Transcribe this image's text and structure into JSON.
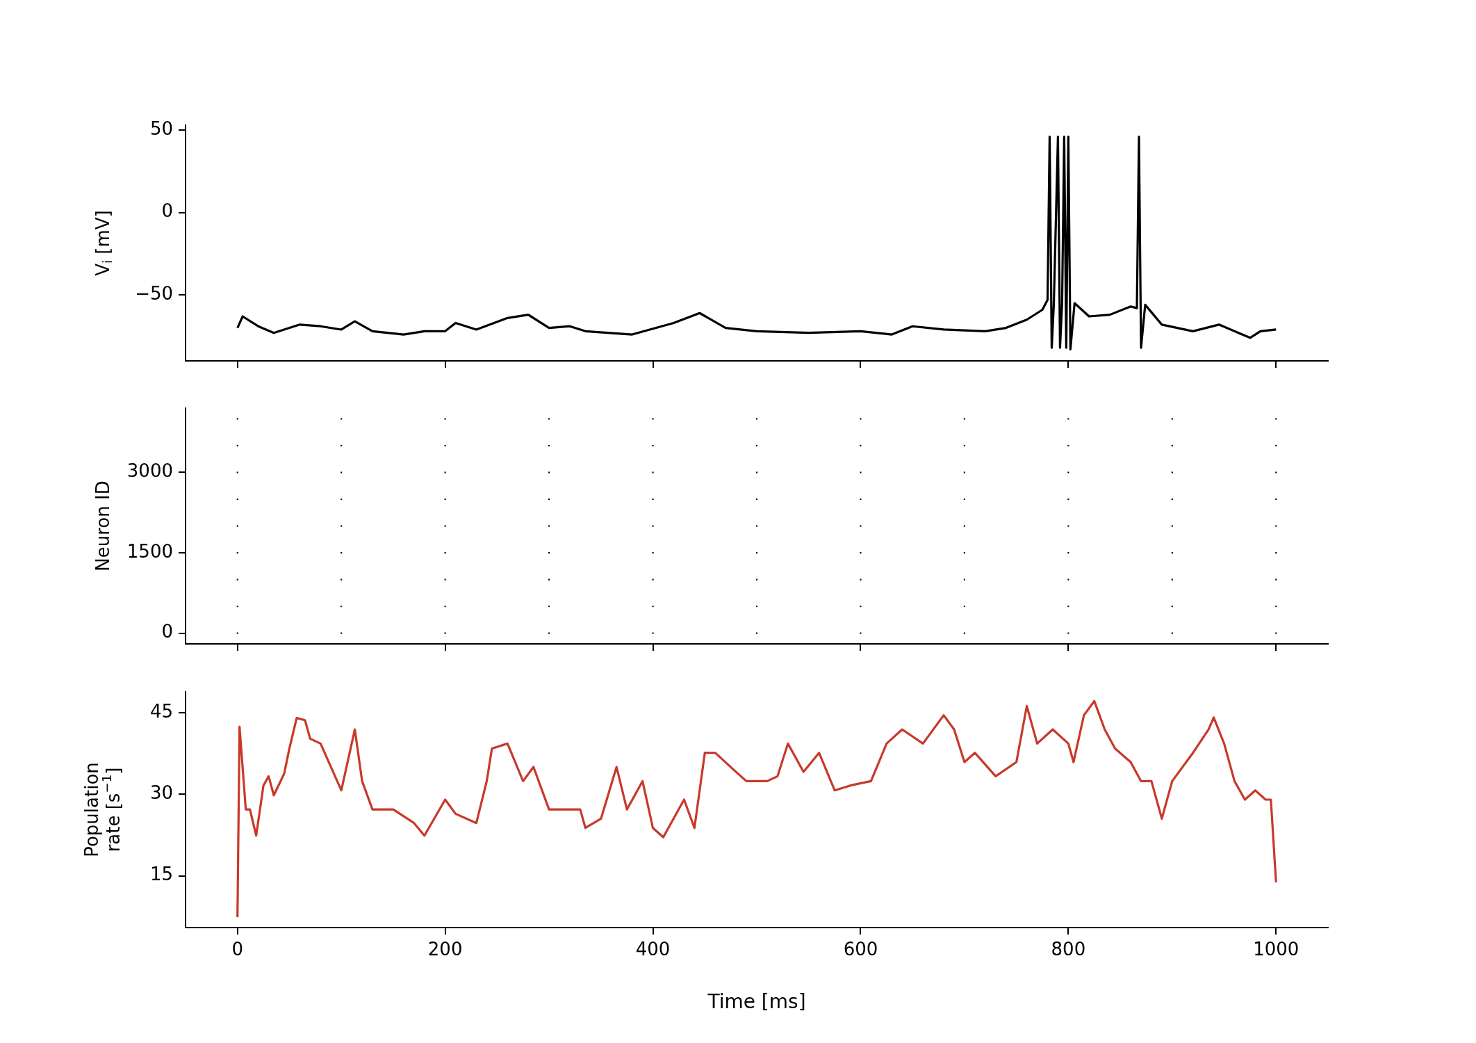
{
  "chart_data": [
    {
      "type": "line",
      "ylabel": "V$_{i}$ [mV]",
      "xlim": [
        -50,
        1050
      ],
      "xticks": [
        0,
        200,
        400,
        600,
        800,
        1000
      ],
      "ylim": [
        -90,
        53
      ],
      "yticks": [
        {
          "value": -50,
          "label": "−50"
        },
        0,
        50
      ],
      "tick_labels": "y",
      "series": [
        {
          "color": "#000000",
          "x": [
            0,
            5,
            10,
            20,
            35,
            60,
            80,
            100,
            113,
            130,
            160,
            180,
            200,
            210,
            230,
            260,
            280,
            300,
            320,
            335,
            380,
            420,
            445,
            470,
            500,
            550,
            600,
            630,
            650,
            680,
            720,
            740,
            760,
            775,
            780,
            782,
            784,
            786,
            790,
            792,
            794,
            796,
            798,
            800,
            802,
            806,
            820,
            840,
            860,
            866,
            868,
            870,
            874,
            890,
            920,
            945,
            975,
            985,
            1000
          ],
          "values": [
            -70,
            -63,
            -65,
            -69,
            -73,
            -68,
            -69,
            -71,
            -66,
            -72,
            -74,
            -72,
            -72,
            -67,
            -71,
            -64,
            -62,
            -70,
            -69,
            -72,
            -74,
            -67,
            -61,
            -70,
            -72,
            -73,
            -72,
            -74,
            -69,
            -71,
            -72,
            -70,
            -65,
            -59,
            -53,
            46,
            -82,
            -56,
            46,
            -82,
            -55,
            46,
            -82,
            46,
            -83,
            -55,
            -63,
            -62,
            -57,
            -58,
            46,
            -82,
            -56,
            -68,
            -72,
            -68,
            -76,
            -72,
            -71
          ]
        }
      ]
    },
    {
      "type": "scatter",
      "ylabel": "Neuron ID",
      "xlim": [
        -50,
        1050
      ],
      "xticks": [
        0,
        200,
        400,
        600,
        800,
        1000
      ],
      "ylim": [
        -200,
        4200
      ],
      "yticks": [
        0,
        1500,
        3000
      ],
      "tick_labels": "y",
      "marker": "square",
      "series": [
        {
          "color": "#000000",
          "x": [
            0,
            0,
            0,
            0,
            0,
            0,
            0,
            0,
            0,
            100,
            100,
            100,
            100,
            100,
            100,
            100,
            100,
            100,
            200,
            200,
            200,
            200,
            200,
            200,
            200,
            200,
            200,
            300,
            300,
            300,
            300,
            300,
            300,
            300,
            300,
            300,
            400,
            400,
            400,
            400,
            400,
            400,
            400,
            400,
            400,
            500,
            500,
            500,
            500,
            500,
            500,
            500,
            500,
            500,
            600,
            600,
            600,
            600,
            600,
            600,
            600,
            600,
            600,
            700,
            700,
            700,
            700,
            700,
            700,
            700,
            700,
            700,
            800,
            800,
            800,
            800,
            800,
            800,
            800,
            800,
            800,
            900,
            900,
            900,
            900,
            900,
            900,
            900,
            900,
            900,
            1000,
            1000,
            1000,
            1000,
            1000,
            1000,
            1000,
            1000,
            1000
          ],
          "values": [
            0,
            500,
            1000,
            1500,
            2000,
            2500,
            3000,
            3500,
            4000,
            0,
            500,
            1000,
            1500,
            2000,
            2500,
            3000,
            3500,
            4000,
            0,
            500,
            1000,
            1500,
            2000,
            2500,
            3000,
            3500,
            4000,
            0,
            500,
            1000,
            1500,
            2000,
            2500,
            3000,
            3500,
            4000,
            0,
            500,
            1000,
            1500,
            2000,
            2500,
            3000,
            3500,
            4000,
            0,
            500,
            1000,
            1500,
            2000,
            2500,
            3000,
            3500,
            4000,
            0,
            500,
            1000,
            1500,
            2000,
            2500,
            3000,
            3500,
            4000,
            0,
            500,
            1000,
            1500,
            2000,
            2500,
            3000,
            3500,
            4000,
            0,
            500,
            1000,
            1500,
            2000,
            2500,
            3000,
            3500,
            4000,
            0,
            500,
            1000,
            1500,
            2000,
            2500,
            3000,
            3500,
            4000,
            0,
            500,
            1000,
            1500,
            2000,
            2500,
            3000,
            3500,
            4000
          ]
        }
      ]
    },
    {
      "type": "line",
      "ylabel": "Population\nrate [s$^{−1}$]",
      "xlabel": "Time [ms]",
      "xlim": [
        -50,
        1050
      ],
      "xticks": [
        0,
        200,
        400,
        600,
        800,
        1000
      ],
      "ylim": [
        5.5,
        48.8
      ],
      "yticks": [
        15,
        30,
        45
      ],
      "series": [
        {
          "color": "#c8392b",
          "x": [
            0,
            2,
            8,
            12,
            18,
            25,
            30,
            35,
            45,
            50,
            57,
            65,
            70,
            80,
            90,
            100,
            113,
            120,
            130,
            150,
            170,
            180,
            200,
            210,
            230,
            240,
            245,
            260,
            275,
            285,
            300,
            330,
            335,
            350,
            365,
            375,
            390,
            400,
            410,
            430,
            440,
            450,
            460,
            480,
            490,
            510,
            520,
            530,
            545,
            560,
            575,
            590,
            610,
            625,
            640,
            660,
            680,
            690,
            700,
            710,
            730,
            750,
            760,
            770,
            785,
            800,
            805,
            815,
            825,
            835,
            845,
            860,
            870,
            880,
            890,
            900,
            920,
            935,
            940,
            950,
            960,
            970,
            980,
            990,
            995,
            1000
          ],
          "values": [
            7.4,
            42.4,
            27.2,
            27.2,
            22.4,
            31.6,
            33.3,
            29.8,
            33.8,
            38.4,
            44,
            43.6,
            40.2,
            39.3,
            35,
            30.7,
            41.9,
            32.4,
            27.2,
            27.2,
            24.7,
            22.4,
            29,
            26.4,
            24.7,
            32.4,
            38.4,
            39.3,
            32.4,
            35,
            27.2,
            27.2,
            23.8,
            25.5,
            35,
            27.2,
            32.4,
            23.8,
            22.1,
            29,
            23.8,
            37.6,
            37.6,
            34.1,
            32.4,
            32.4,
            33.3,
            39.3,
            34.1,
            37.6,
            30.7,
            31.6,
            32.4,
            39.3,
            41.9,
            39.3,
            44.5,
            41.9,
            35.9,
            37.6,
            33.3,
            35.9,
            46.2,
            39.3,
            41.9,
            39.3,
            35.9,
            44.5,
            47.1,
            41.9,
            38.4,
            35.9,
            32.4,
            32.4,
            25.5,
            32.4,
            37.6,
            41.9,
            44.1,
            39.3,
            32.4,
            29,
            30.7,
            29,
            29,
            13.8
          ]
        }
      ]
    }
  ]
}
